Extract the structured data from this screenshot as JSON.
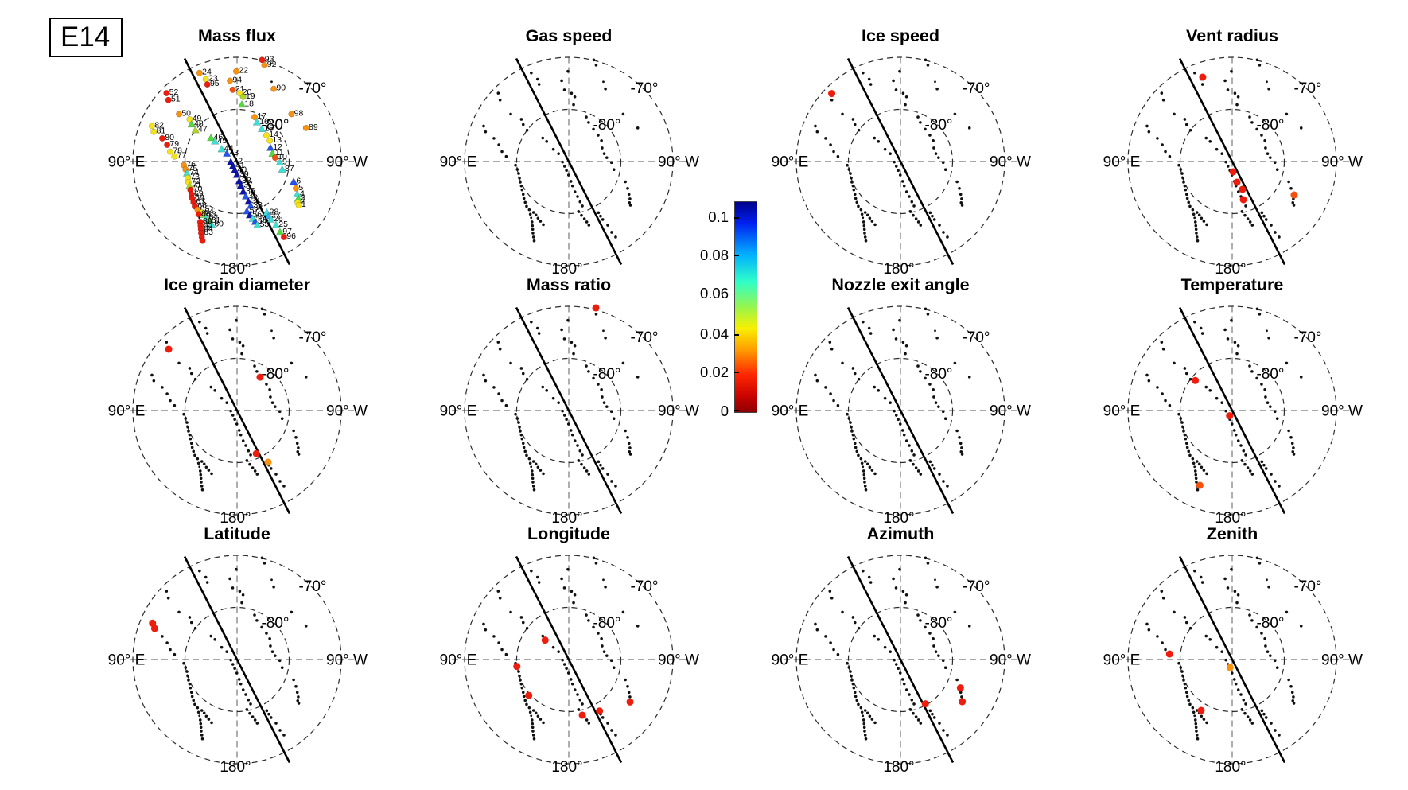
{
  "figure_label": "E14",
  "axis_labels": {
    "east": "90° E",
    "west": "90° W",
    "south": "180°",
    "outer_ring": "-70°",
    "inner_ring": "-80°"
  },
  "colorbar": {
    "ticks": [
      {
        "label": "0.1",
        "f": 0.076
      },
      {
        "label": "0.08",
        "f": 0.256
      },
      {
        "label": "0.06",
        "f": 0.439
      },
      {
        "label": "0.04",
        "f": 0.633
      },
      {
        "label": "0.02",
        "f": 0.814
      },
      {
        "label": "0",
        "f": 1.0
      }
    ],
    "gradient": [
      "#00008a 0%",
      "#0020f0 10%",
      "#00b0ff 25%",
      "#2fffc8 38%",
      "#97f54d 50%",
      "#f7f000 60%",
      "#ffa000 70%",
      "#ff2800 82%",
      "#cc0400 92%",
      "#8c0000 100%"
    ]
  },
  "chart_data": {
    "type": "scatter",
    "description": "Twelve south-polar stereographic scatter panels (latitude rings -70 and -80 deg, pole at center) showing Enceladus jet/vent locations for flyby E14. Mass flux panel shows all vents colored by value (jet colormap 0-0.1) with vent ID labels; remaining panels show vents as black dots with selected vents highlighted red/orange.",
    "radial_rings": [
      {
        "label": "-80°",
        "r": 0.5
      },
      {
        "label": "-70°",
        "r": 1.0
      }
    ],
    "palette": {
      "red": "#ee1c0c",
      "redorange": "#f4500e",
      "orange": "#f8920f",
      "yellow": "#f3e318",
      "yellowgreen": "#add822",
      "green": "#52dc3c",
      "cyan": "#3fdfd4",
      "lightblue": "#35aef0",
      "blue": "#2454f0",
      "navy": "#0d14aa",
      "dot": "#111111"
    },
    "points": [
      [
        "24",
        -0.36,
        -0.85,
        "c",
        "orange"
      ],
      [
        "23",
        -0.3,
        -0.79,
        "c",
        "yellow"
      ],
      [
        "95",
        -0.285,
        -0.74,
        "c",
        "red"
      ],
      [
        "52",
        -0.677,
        -0.656,
        "c",
        "red"
      ],
      [
        "51",
        -0.659,
        -0.59,
        "c",
        "red"
      ],
      [
        "50",
        -0.557,
        -0.455,
        "c",
        "orange"
      ],
      [
        "49",
        -0.455,
        -0.405,
        "c",
        "yellow"
      ],
      [
        "48",
        -0.437,
        -0.355,
        "t",
        "green"
      ],
      [
        "47",
        -0.4,
        -0.3,
        "t",
        "yellowgreen"
      ],
      [
        "82",
        -0.817,
        -0.34,
        "c",
        "yellow"
      ],
      [
        "81",
        -0.799,
        -0.285,
        "c",
        "yellow"
      ],
      [
        "80",
        -0.718,
        -0.222,
        "c",
        "red"
      ],
      [
        "79",
        -0.671,
        -0.16,
        "c",
        "red"
      ],
      [
        "78",
        -0.641,
        -0.095,
        "c",
        "yellow"
      ],
      [
        "77",
        -0.6,
        -0.048,
        "c",
        "yellow"
      ],
      [
        "22",
        -0.008,
        -0.865,
        "c",
        "orange"
      ],
      [
        "94",
        -0.068,
        -0.775,
        "c",
        "orange"
      ],
      [
        "21",
        -0.042,
        -0.688,
        "c",
        "redorange"
      ],
      [
        "20",
        0.026,
        -0.655,
        "c",
        "yellow"
      ],
      [
        "19",
        0.058,
        -0.62,
        "c",
        "yellowgreen"
      ],
      [
        "18",
        0.046,
        -0.545,
        "t",
        "green"
      ],
      [
        "93",
        0.24,
        -0.975,
        "c",
        "red"
      ],
      [
        "92",
        0.263,
        -0.925,
        "c",
        "orange"
      ],
      [
        "",
        0.332,
        -0.765,
        "d",
        "dot"
      ],
      [
        "90",
        0.352,
        -0.697,
        "c",
        "orange"
      ],
      [
        "98",
        0.522,
        -0.455,
        "c",
        "orange"
      ],
      [
        "89",
        0.662,
        -0.322,
        "c",
        "orange"
      ],
      [
        "17",
        0.168,
        -0.427,
        "c",
        "orange"
      ],
      [
        "16",
        0.19,
        -0.375,
        "t",
        "cyan"
      ],
      [
        "15",
        0.237,
        -0.31,
        "t",
        "cyan"
      ],
      [
        "14",
        0.282,
        -0.252,
        "c",
        "yellow"
      ],
      [
        "13",
        0.314,
        -0.2,
        "c",
        "yellow"
      ],
      [
        "12",
        0.32,
        -0.13,
        "t",
        "blue"
      ],
      [
        "11",
        0.34,
        -0.075,
        "t",
        "green"
      ],
      [
        "10",
        0.365,
        -0.037,
        "c",
        "redorange"
      ],
      [
        "9",
        0.41,
        0.01,
        "t",
        "cyan"
      ],
      [
        "87",
        0.433,
        0.078,
        "t",
        "cyan"
      ],
      [
        "6",
        0.543,
        0.195,
        "t",
        "blue"
      ],
      [
        "5",
        0.565,
        0.258,
        "c",
        "orange"
      ],
      [
        "4",
        0.578,
        0.315,
        "t",
        "cyan"
      ],
      [
        "3",
        0.587,
        0.358,
        "t",
        "green"
      ],
      [
        "2",
        0.582,
        0.395,
        "c",
        "yellow"
      ],
      [
        "1",
        0.592,
        0.42,
        "c",
        "yellow"
      ],
      [
        "46",
        -0.25,
        -0.225,
        "t",
        "green"
      ],
      [
        "45",
        -0.212,
        -0.192,
        "t",
        "cyan"
      ],
      [
        "44",
        -0.148,
        -0.117,
        "t",
        "cyan"
      ],
      [
        "43",
        -0.098,
        -0.075,
        "t",
        "blue"
      ],
      [
        "42",
        -0.06,
        0.005,
        "t",
        "navy"
      ],
      [
        "41",
        -0.04,
        0.046,
        "t",
        "navy"
      ],
      [
        "40",
        -0.022,
        0.086,
        "t",
        "navy"
      ],
      [
        "39",
        -0.002,
        0.13,
        "t",
        "navy"
      ],
      [
        "38",
        0.021,
        0.19,
        "t",
        "navy"
      ],
      [
        "37",
        0.036,
        0.234,
        "t",
        "navy"
      ],
      [
        "36",
        0.059,
        0.29,
        "t",
        "navy"
      ],
      [
        "35",
        0.084,
        0.336,
        "t",
        "blue"
      ],
      [
        "34",
        0.109,
        0.387,
        "t",
        "navy"
      ],
      [
        "33",
        0.13,
        0.427,
        "t",
        "blue"
      ],
      [
        "57",
        0.094,
        0.479,
        "t",
        "blue"
      ],
      [
        "56",
        0.122,
        0.517,
        "t",
        "navy"
      ],
      [
        "55",
        0.15,
        0.55,
        "t",
        "cyan"
      ],
      [
        "54",
        0.173,
        0.58,
        "t",
        "blue"
      ],
      [
        "53",
        0.193,
        0.611,
        "t",
        "cyan"
      ],
      [
        "28",
        0.285,
        0.491,
        "t",
        "cyan"
      ],
      [
        "27",
        0.305,
        0.524,
        "t",
        "lightblue"
      ],
      [
        "26",
        0.326,
        0.557,
        "t",
        "cyan"
      ],
      [
        "25",
        0.374,
        0.611,
        "t",
        "cyan"
      ],
      [
        "97",
        0.412,
        0.679,
        "t",
        "green"
      ],
      [
        "96",
        0.45,
        0.725,
        "c",
        "red"
      ],
      [
        "76",
        -0.511,
        0.036,
        "c",
        "orange"
      ],
      [
        "75",
        -0.494,
        0.076,
        "c",
        "orange"
      ],
      [
        "74",
        -0.481,
        0.115,
        "t",
        "cyan"
      ],
      [
        "73",
        -0.473,
        0.158,
        "c",
        "yellow"
      ],
      [
        "72",
        -0.466,
        0.198,
        "c",
        "yellow"
      ],
      [
        "71",
        -0.455,
        0.234,
        "t",
        "yellowgreen"
      ],
      [
        "70",
        -0.448,
        0.272,
        "c",
        "red"
      ],
      [
        "69",
        -0.437,
        0.315,
        "c",
        "red"
      ],
      [
        "68",
        -0.43,
        0.354,
        "c",
        "red"
      ],
      [
        "67",
        -0.418,
        0.392,
        "c",
        "red"
      ],
      [
        "66",
        -0.405,
        0.43,
        "c",
        "red"
      ],
      [
        "65",
        -0.379,
        0.463,
        "c",
        "orange"
      ],
      [
        "64",
        -0.338,
        0.489,
        "c",
        "yellow"
      ],
      [
        "63",
        -0.315,
        0.514,
        "t",
        "yellowgreen"
      ],
      [
        "62",
        -0.295,
        0.544,
        "t",
        "cyan"
      ],
      [
        "61",
        -0.272,
        0.573,
        "t",
        "green"
      ],
      [
        "60",
        -0.244,
        0.606,
        "t",
        "cyan"
      ],
      [
        "88",
        -0.369,
        0.506,
        "c",
        "red"
      ],
      [
        "",
        -0.361,
        0.54,
        "d",
        "dot"
      ],
      [
        "86",
        -0.353,
        0.58,
        "c",
        "red"
      ],
      [
        "85",
        -0.349,
        0.616,
        "c",
        "red"
      ],
      [
        "84",
        -0.346,
        0.651,
        "c",
        "red"
      ],
      [
        "83",
        -0.344,
        0.687,
        "c",
        "red"
      ],
      [
        "",
        -0.338,
        0.725,
        "c",
        "red"
      ],
      [
        "",
        -0.332,
        0.761,
        "c",
        "red"
      ]
    ],
    "panels": [
      {
        "title": "Mass flux",
        "mode": "colored",
        "highlights": []
      },
      {
        "title": "Gas speed",
        "mode": "dots",
        "highlights": []
      },
      {
        "title": "Ice speed",
        "mode": "dots",
        "highlights": [
          [
            -0.66,
            -0.652,
            "red"
          ]
        ]
      },
      {
        "title": "Vent radius",
        "mode": "dots",
        "highlights": [
          [
            -0.283,
            -0.809,
            "red"
          ],
          [
            0.008,
            0.099,
            "red"
          ],
          [
            0.046,
            0.198,
            "red"
          ],
          [
            0.099,
            0.267,
            "red"
          ],
          [
            0.107,
            0.366,
            "red"
          ],
          [
            0.595,
            0.321,
            "redorange"
          ]
        ]
      },
      {
        "title": "Ice grain diameter",
        "mode": "dots",
        "highlights": [
          [
            -0.656,
            -0.588,
            "red"
          ],
          [
            0.221,
            -0.32,
            "red"
          ],
          [
            0.185,
            0.414,
            "red"
          ],
          [
            0.298,
            0.496,
            "orange"
          ]
        ]
      },
      {
        "title": "Mass ratio",
        "mode": "dots",
        "highlights": [
          [
            0.26,
            -0.985,
            "red"
          ]
        ]
      },
      {
        "title": "Nozzle exit angle",
        "mode": "dots",
        "highlights": []
      },
      {
        "title": "Temperature",
        "mode": "dots",
        "highlights": [
          [
            -0.354,
            -0.288,
            "red"
          ],
          [
            -0.025,
            0.051,
            "red"
          ],
          [
            -0.31,
            0.718,
            "redorange"
          ]
        ]
      },
      {
        "title": "Latitude",
        "mode": "dots",
        "highlights": [
          [
            -0.811,
            -0.349,
            "red"
          ],
          [
            -0.791,
            -0.298,
            "red"
          ]
        ]
      },
      {
        "title": "Longitude",
        "mode": "dots",
        "highlights": [
          [
            -0.227,
            -0.186,
            "red"
          ],
          [
            -0.498,
            0.066,
            "red"
          ],
          [
            -0.384,
            0.344,
            "red"
          ],
          [
            0.13,
            0.534,
            "red"
          ],
          [
            0.295,
            0.494,
            "red"
          ],
          [
            0.588,
            0.407,
            "red"
          ]
        ]
      },
      {
        "title": "Azimuth",
        "mode": "dots",
        "highlights": [
          [
            0.239,
            0.425,
            "red"
          ],
          [
            0.575,
            0.272,
            "red"
          ],
          [
            0.593,
            0.405,
            "red"
          ]
        ]
      },
      {
        "title": "Zenith",
        "mode": "dots",
        "highlights": [
          [
            -0.601,
            -0.053,
            "red"
          ],
          [
            -0.021,
            0.076,
            "orange"
          ],
          [
            -0.298,
            0.489,
            "red"
          ]
        ]
      }
    ]
  }
}
